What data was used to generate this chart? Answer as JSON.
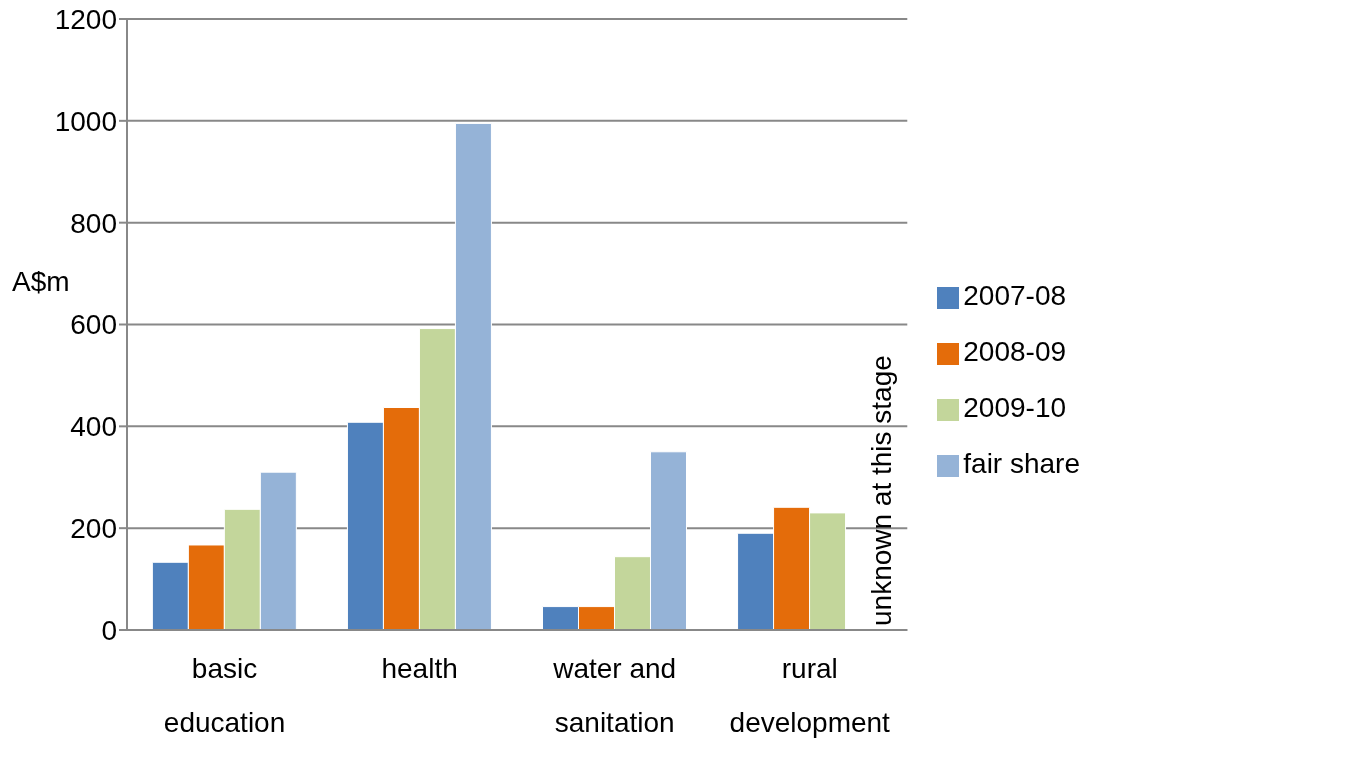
{
  "chart_data": {
    "type": "bar",
    "ylabel": "A$m",
    "categories": [
      "basic education",
      "health",
      "water and sanitation",
      "rural development"
    ],
    "series": [
      {
        "name": "2007-08",
        "color": "#4f81bd",
        "values": [
          133,
          408,
          46,
          190
        ]
      },
      {
        "name": "2008-09",
        "color": "#e46c0a",
        "values": [
          167,
          437,
          46,
          241
        ]
      },
      {
        "name": "2009-10",
        "color": "#c3d69b",
        "values": [
          237,
          592,
          144,
          230
        ]
      },
      {
        "name": "fair share",
        "color": "#95b3d7",
        "values": [
          310,
          995,
          350,
          null
        ]
      }
    ],
    "ylim": [
      0,
      1200
    ],
    "yticks": [
      0,
      200,
      400,
      600,
      800,
      1000,
      1200
    ],
    "grid": "y",
    "legend": "right",
    "annotations": [
      {
        "text": "unknown at this stage",
        "x": "rural development",
        "y": 0
      }
    ]
  }
}
